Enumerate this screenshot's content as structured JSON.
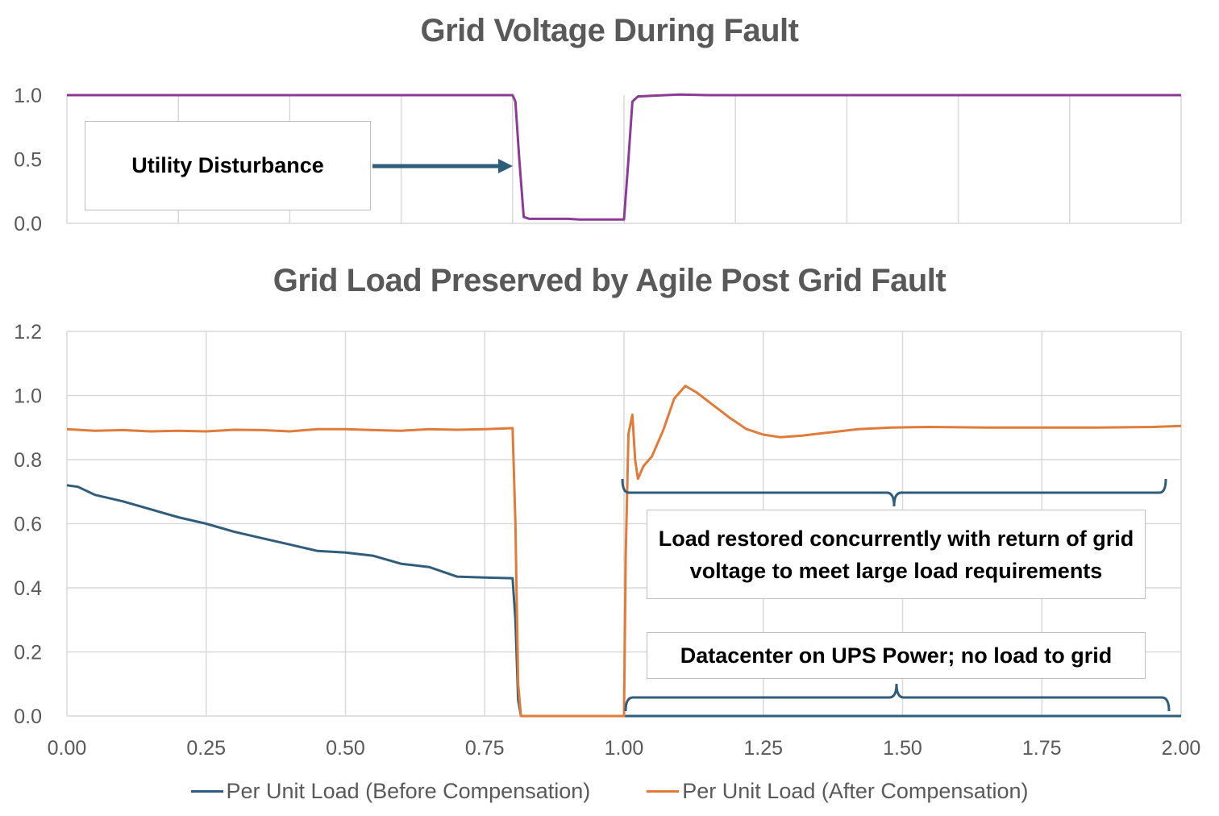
{
  "colors": {
    "voltage": "#8b3a96",
    "before": "#2f5d7c",
    "after": "#e07b39",
    "grid": "#d9d9d9",
    "axis_text": "#595959",
    "arrow": "#2f5d7c",
    "bracket": "#2f5d7c"
  },
  "chart_data": [
    {
      "type": "line",
      "title": "Grid Voltage During Fault",
      "xlim": [
        0,
        2
      ],
      "ylim": [
        0,
        1
      ],
      "yticks": [
        "0.0",
        "0.5",
        "1.0"
      ],
      "series": [
        {
          "points": [
            [
              0,
              1.0
            ],
            [
              0.8,
              1.0
            ],
            [
              0.805,
              0.95
            ],
            [
              0.812,
              0.5
            ],
            [
              0.82,
              0.05
            ],
            [
              0.83,
              0.035
            ],
            [
              0.9,
              0.035
            ],
            [
              0.92,
              0.03
            ],
            [
              0.99,
              0.03
            ],
            [
              1.0,
              0.03
            ],
            [
              1.008,
              0.5
            ],
            [
              1.015,
              0.95
            ],
            [
              1.025,
              0.99
            ],
            [
              1.05,
              0.995
            ],
            [
              1.1,
              1.005
            ],
            [
              1.15,
              1.0
            ],
            [
              2.0,
              1.0
            ]
          ]
        }
      ],
      "annotation": "Utility Disturbance"
    },
    {
      "type": "line",
      "title": "Grid Load Preserved by Agile Post Grid Fault",
      "xlim": [
        0,
        2
      ],
      "ylim": [
        0,
        1.2
      ],
      "xticks": [
        "0.00",
        "0.25",
        "0.50",
        "0.75",
        "1.00",
        "1.25",
        "1.50",
        "1.75",
        "2.00"
      ],
      "yticks": [
        "0.0",
        "0.2",
        "0.4",
        "0.6",
        "0.8",
        "1.0",
        "1.2"
      ],
      "series": [
        {
          "name": "Per Unit Load (Before Compensation)",
          "points": [
            [
              0,
              0.72
            ],
            [
              0.02,
              0.715
            ],
            [
              0.05,
              0.69
            ],
            [
              0.1,
              0.67
            ],
            [
              0.15,
              0.645
            ],
            [
              0.2,
              0.62
            ],
            [
              0.25,
              0.6
            ],
            [
              0.3,
              0.575
            ],
            [
              0.35,
              0.555
            ],
            [
              0.4,
              0.535
            ],
            [
              0.45,
              0.515
            ],
            [
              0.5,
              0.51
            ],
            [
              0.55,
              0.5
            ],
            [
              0.6,
              0.475
            ],
            [
              0.65,
              0.465
            ],
            [
              0.7,
              0.435
            ],
            [
              0.75,
              0.432
            ],
            [
              0.8,
              0.43
            ],
            [
              0.805,
              0.3
            ],
            [
              0.81,
              0.05
            ],
            [
              0.815,
              0.0
            ],
            [
              2.0,
              0.0
            ]
          ]
        },
        {
          "name": "Per Unit Load (After Compensation)",
          "points": [
            [
              0,
              0.895
            ],
            [
              0.05,
              0.89
            ],
            [
              0.1,
              0.892
            ],
            [
              0.15,
              0.888
            ],
            [
              0.2,
              0.89
            ],
            [
              0.25,
              0.888
            ],
            [
              0.3,
              0.893
            ],
            [
              0.35,
              0.892
            ],
            [
              0.4,
              0.888
            ],
            [
              0.45,
              0.895
            ],
            [
              0.5,
              0.895
            ],
            [
              0.55,
              0.892
            ],
            [
              0.6,
              0.89
            ],
            [
              0.65,
              0.895
            ],
            [
              0.7,
              0.893
            ],
            [
              0.75,
              0.895
            ],
            [
              0.8,
              0.898
            ],
            [
              0.805,
              0.6
            ],
            [
              0.81,
              0.1
            ],
            [
              0.815,
              0.0
            ],
            [
              1.0,
              0.0
            ],
            [
              1.003,
              0.5
            ],
            [
              1.008,
              0.88
            ],
            [
              1.015,
              0.94
            ],
            [
              1.02,
              0.8
            ],
            [
              1.025,
              0.74
            ],
            [
              1.035,
              0.78
            ],
            [
              1.05,
              0.81
            ],
            [
              1.07,
              0.89
            ],
            [
              1.09,
              0.99
            ],
            [
              1.11,
              1.03
            ],
            [
              1.13,
              1.01
            ],
            [
              1.16,
              0.97
            ],
            [
              1.19,
              0.93
            ],
            [
              1.22,
              0.895
            ],
            [
              1.25,
              0.878
            ],
            [
              1.28,
              0.87
            ],
            [
              1.32,
              0.875
            ],
            [
              1.37,
              0.885
            ],
            [
              1.42,
              0.895
            ],
            [
              1.48,
              0.9
            ],
            [
              1.55,
              0.902
            ],
            [
              1.65,
              0.9
            ],
            [
              1.75,
              0.9
            ],
            [
              1.85,
              0.9
            ],
            [
              1.95,
              0.902
            ],
            [
              2.0,
              0.905
            ]
          ]
        }
      ],
      "annotations": [
        "Load restored concurrently with return of grid voltage to meet large load requirements",
        "Datacenter on UPS Power; no load to grid"
      ],
      "legend_position": "bottom"
    }
  ]
}
